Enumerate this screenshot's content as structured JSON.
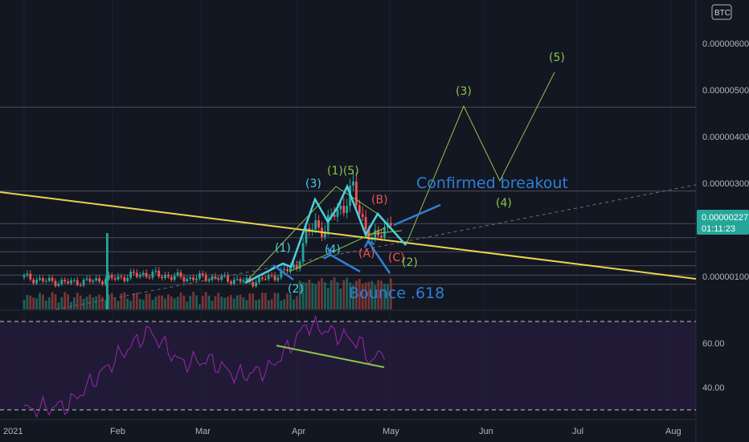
{
  "currency_badge": "BTC",
  "price_axis": {
    "labels": [
      "0.00000600",
      "0.00000500",
      "0.00000400",
      "0.00000300",
      "0.00000100"
    ],
    "current_price": "0.00000227",
    "countdown": "01:11:23"
  },
  "rsi_axis": {
    "labels": [
      "60.00",
      "40.00"
    ]
  },
  "time_axis": {
    "labels": [
      "2021",
      "Feb",
      "Mar",
      "Apr",
      "May",
      "Jun",
      "Jul",
      "Aug"
    ]
  },
  "annotations": {
    "wave_1": "(1)",
    "wave_2": "(2)",
    "wave_3": "(3)",
    "wave_4": "(4)",
    "wave_15": "(1)(5)",
    "wave_A": "(A)",
    "wave_B": "(B)",
    "wave_C": "(C)",
    "proj_2": "(2)",
    "proj_3": "(3)",
    "proj_4": "(4)",
    "proj_5": "(5)",
    "breakout": "Confirmed breakout",
    "bounce": "Bounce .618"
  },
  "colors": {
    "background": "#131722",
    "rsi_background": "#201a36",
    "up": "#26a69a",
    "down": "#ef5350",
    "trendline": "#e8d44d",
    "wave": "#4dd0e1",
    "projection": "#8bc34a",
    "arrow": "#2e7fd6",
    "rsi_line": "#9c27b0",
    "price_tag": "#26a69a"
  },
  "chart_data": [
    {
      "type": "candlestick",
      "title": "",
      "x": [
        "2021-01-01",
        "2021-01-08",
        "2021-01-15",
        "2021-01-22",
        "2021-01-29",
        "2021-02-01",
        "2021-02-08",
        "2021-02-15",
        "2021-02-22",
        "2021-03-01",
        "2021-03-08",
        "2021-03-15",
        "2021-03-22",
        "2021-03-29",
        "2021-04-01",
        "2021-04-04",
        "2021-04-07",
        "2021-04-10",
        "2021-04-13",
        "2021-04-16",
        "2021-04-19",
        "2021-04-22",
        "2021-04-25",
        "2021-04-28"
      ],
      "close": [
        1.05,
        0.97,
        0.94,
        0.97,
        1.02,
        1.05,
        1.12,
        1.08,
        1.03,
        1.05,
        1.0,
        0.95,
        1.08,
        1.3,
        1.95,
        2.2,
        2.05,
        2.45,
        2.6,
        2.9,
        2.3,
        1.8,
        2.05,
        2.27
      ],
      "ylim": [
        4e-07,
        6.8e-06
      ],
      "price_levels": [
        4.7e-06,
        2.9e-06,
        2.2e-06,
        1.9e-06,
        1.6e-06,
        1.3e-06,
        1.1e-06,
        9e-07
      ]
    },
    {
      "type": "line",
      "title": "",
      "x": [
        "2021-01-01",
        "2021-01-15",
        "2021-02-01",
        "2021-02-10",
        "2021-02-20",
        "2021-03-01",
        "2021-03-10",
        "2021-03-20",
        "2021-03-28",
        "2021-04-01",
        "2021-04-06",
        "2021-04-12",
        "2021-04-18",
        "2021-04-22",
        "2021-04-26"
      ],
      "values": [
        30,
        32,
        55,
        65,
        51,
        52,
        45,
        48,
        60,
        68,
        66,
        63,
        60,
        51,
        57
      ],
      "ylim": [
        28,
        75
      ],
      "levels": [
        70,
        30
      ]
    }
  ]
}
